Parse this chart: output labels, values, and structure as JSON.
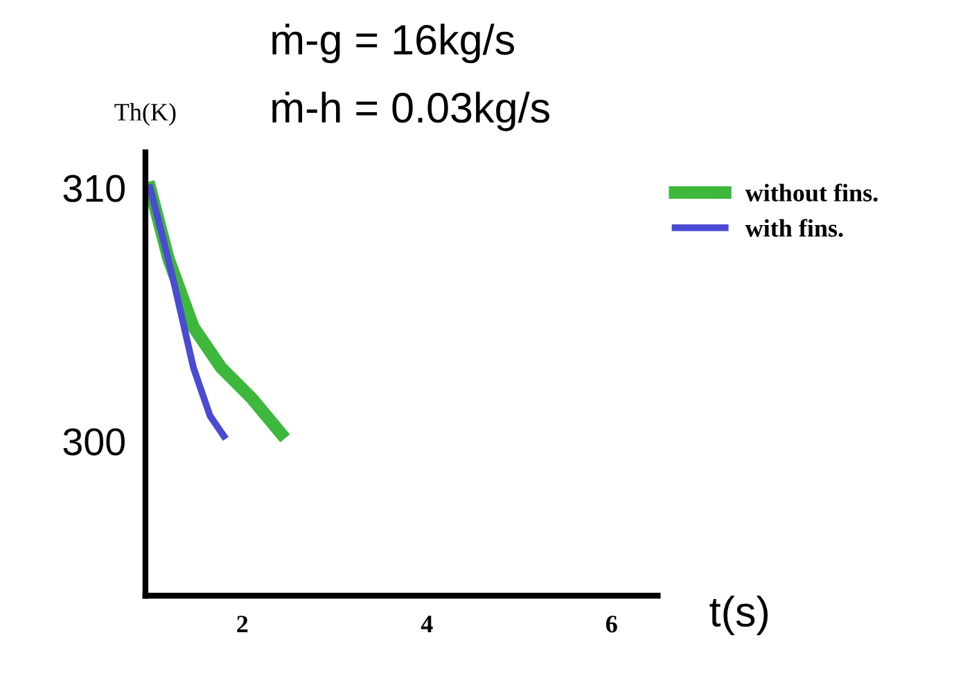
{
  "chart_data": {
    "type": "line",
    "title": "ṁ-g = 16kg/s",
    "subtitle": "ṁ-h = 0.03kg/s",
    "xlabel": "t(s)",
    "ylabel": "Th(K)",
    "xlim": [
      0.95,
      6.5
    ],
    "ylim": [
      293.9,
      311.4
    ],
    "xticks": [
      2,
      4,
      6
    ],
    "yticks": [
      300,
      310
    ],
    "series": [
      {
        "name": "without fins.",
        "color": "#3db83d",
        "x": [
          1,
          1.2,
          1.47,
          1.77,
          2.1,
          2.42
        ],
        "values": [
          310,
          307.2,
          304.5,
          302.9,
          301.7,
          300.3
        ]
      },
      {
        "name": "with fins.",
        "color": "#4a4ad4",
        "x": [
          1,
          1.12,
          1.25,
          1.47,
          1.65,
          1.8
        ],
        "values": [
          310,
          308.3,
          306.4,
          302.9,
          301.0,
          300.2
        ]
      }
    ],
    "legend": "top right",
    "grid": false,
    "marker": "none",
    "line_style": "solid"
  }
}
